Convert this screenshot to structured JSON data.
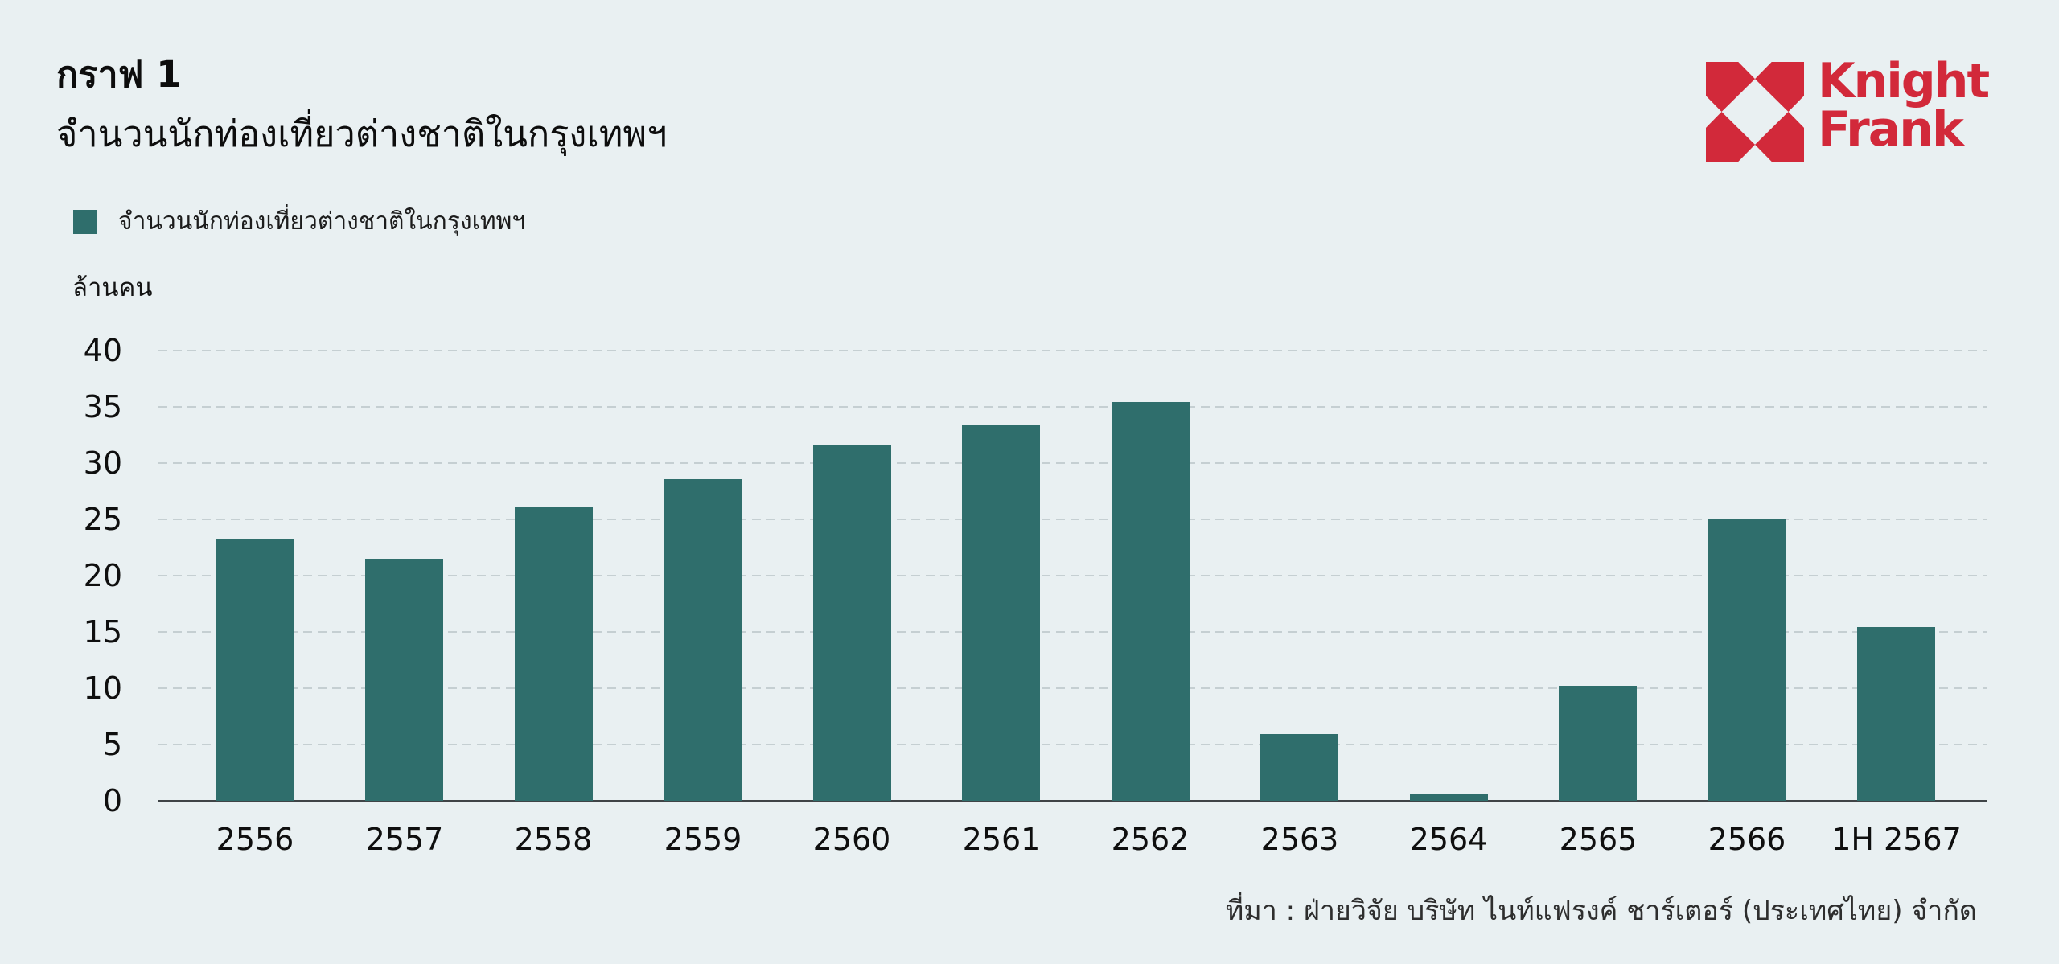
{
  "page": {
    "background": "#E9F0F2"
  },
  "header": {
    "title": "กราฟ 1",
    "subtitle": "จำนวนนักท่องเที่ยวต่างชาติในกรุงเทพฯ"
  },
  "logo": {
    "line1": "Knight",
    "line2": "Frank",
    "color": "#D2293A",
    "mark": "knight-frank-diamond-mark"
  },
  "legend": {
    "label": "จำนวนนักท่องเที่ยวต่างชาติในกรุงเทพฯ",
    "swatch_color": "#2F6E6C"
  },
  "chart_data": {
    "type": "bar",
    "title": "กราฟ 1",
    "subtitle": "จำนวนนักท่องเที่ยวต่างชาติในกรุงเทพฯ",
    "unit_label": "ล้านคน",
    "categories": [
      "2556",
      "2557",
      "2558",
      "2559",
      "2560",
      "2561",
      "2562",
      "2563",
      "2564",
      "2565",
      "2566",
      "1H 2567"
    ],
    "values": [
      23.2,
      21.5,
      26.1,
      28.6,
      31.6,
      33.4,
      35.4,
      5.9,
      0.6,
      10.2,
      25.0,
      15.4
    ],
    "ylim": [
      0,
      40
    ],
    "ytick_step": 5,
    "yticks": [
      "0",
      "5",
      "10",
      "15",
      "20",
      "25",
      "30",
      "35",
      "40"
    ],
    "grid": "horizontal-dashed",
    "legend_position": "top-left",
    "bar_color": "#2F6E6C",
    "gridline_color": "#c5cfd2",
    "xlabel": "",
    "ylabel": "ล้านคน"
  },
  "source": {
    "text": "ที่มา : ฝ่ายวิจัย บริษัท ไนท์แฟรงค์ ชาร์เตอร์ (ประเทศไทย) จำกัด"
  }
}
